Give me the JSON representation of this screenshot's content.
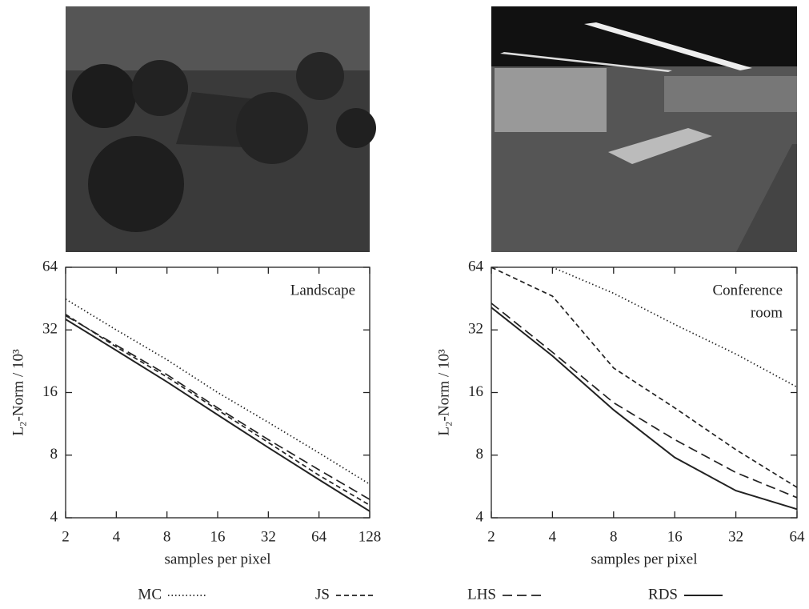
{
  "chart_data": [
    {
      "type": "line",
      "annotation": [
        "Landscape"
      ],
      "xlabel": "samples per pixel",
      "ylabel": "L₂-Norm / 10³",
      "log_x": true,
      "log_y": true,
      "xlim": [
        2,
        128
      ],
      "ylim": [
        4,
        64
      ],
      "xticks": [
        2,
        4,
        8,
        16,
        32,
        64,
        128
      ],
      "yticks": [
        4,
        8,
        16,
        32,
        64
      ],
      "x": [
        2,
        4,
        8,
        16,
        32,
        64,
        128
      ],
      "series": [
        {
          "dash": "dotted",
          "color": "#222",
          "values": [
            45,
            32,
            23,
            16,
            11.5,
            8.2,
            5.8
          ]
        },
        {
          "dash": "short-dash",
          "color": "#222",
          "values": [
            38,
            26.5,
            19,
            13.2,
            9.2,
            6.4,
            4.6
          ]
        },
        {
          "dash": "long-dash",
          "color": "#222",
          "values": [
            37.5,
            27,
            19.5,
            13.5,
            9.5,
            6.8,
            4.9
          ]
        },
        {
          "dash": "solid",
          "color": "#222",
          "values": [
            36,
            25.5,
            18,
            12.5,
            8.7,
            6.1,
            4.3
          ]
        }
      ]
    },
    {
      "type": "line",
      "annotation": [
        "Conference",
        "room"
      ],
      "xlabel": "samples per pixel",
      "ylabel": "L₂-Norm / 10³",
      "log_x": true,
      "log_y": true,
      "xlim": [
        2,
        64
      ],
      "ylim": [
        4,
        64
      ],
      "xticks": [
        2,
        4,
        8,
        16,
        32,
        64
      ],
      "yticks": [
        4,
        8,
        16,
        32,
        64
      ],
      "x": [
        2,
        4,
        8,
        16,
        32,
        64
      ],
      "series": [
        {
          "dash": "dotted",
          "color": "#222",
          "values": [
            null,
            64,
            48,
            34,
            24.5,
            17
          ]
        },
        {
          "dash": "short-dash",
          "color": "#222",
          "values": [
            64,
            46.5,
            21,
            13.5,
            8.5,
            5.6
          ]
        },
        {
          "dash": "long-dash",
          "color": "#222",
          "values": [
            43,
            25,
            14.3,
            9.5,
            6.6,
            5
          ]
        },
        {
          "dash": "solid",
          "color": "#222",
          "values": [
            41,
            24,
            13.2,
            7.8,
            5.4,
            4.4
          ]
        }
      ]
    }
  ],
  "legend": [
    {
      "name": "MC",
      "dash": "dotted"
    },
    {
      "name": "JS",
      "dash": "short-dash"
    },
    {
      "name": "LHS",
      "dash": "long-dash"
    },
    {
      "name": "RDS",
      "dash": "solid"
    }
  ]
}
